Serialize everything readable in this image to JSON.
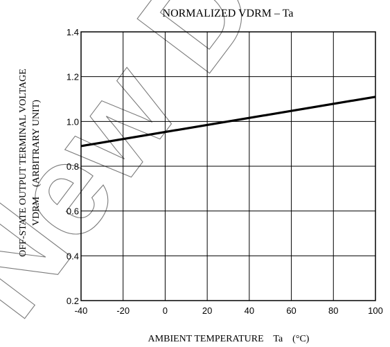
{
  "chart_data": {
    "type": "line",
    "title": "NORMALIZED VDRM – Ta",
    "xlabel": "AMBIENT TEMPERATURE    Ta    (°C)",
    "ylabel_line1": "OFF-STATE OUTPUT TERMINAL VOLTAGE",
    "ylabel_line2": "VDRM    (ARBITRARY UNIT)",
    "xlim": [
      -40,
      100
    ],
    "ylim": [
      0.2,
      1.4
    ],
    "xticks": [
      -40,
      -20,
      0,
      20,
      40,
      60,
      80,
      100
    ],
    "yticks": [
      0.2,
      0.4,
      0.6,
      0.8,
      1.0,
      1.2,
      1.4
    ],
    "xtick_labels": [
      "-40",
      "-20",
      "0",
      "20",
      "40",
      "60",
      "80",
      "100"
    ],
    "ytick_labels": [
      "0.2",
      "0.4",
      "0.6",
      "0.8",
      "1.0",
      "1.2",
      "1.4"
    ],
    "grid": true,
    "series": [
      {
        "x": [
          -40,
          100
        ],
        "y": [
          0.89,
          1.11
        ]
      }
    ],
    "colors": {
      "line": "#000000",
      "grid": "#000000",
      "watermark": "#7a7a7a"
    }
  },
  "watermark": "New Design"
}
